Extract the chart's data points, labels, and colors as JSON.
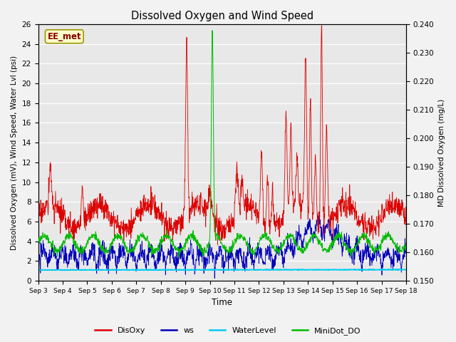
{
  "title": "Dissolved Oxygen and Wind Speed",
  "xlabel": "Time",
  "ylabel_left": "Dissolved Oxygen (mV), Wind Speed, Water Lvl (psi)",
  "ylabel_right": "MD Dissolved Oxygen (mg/L)",
  "ylim_left": [
    0,
    26
  ],
  "ylim_right": [
    0.15,
    0.24
  ],
  "yticks_left": [
    0,
    2,
    4,
    6,
    8,
    10,
    12,
    14,
    16,
    18,
    20,
    22,
    24,
    26
  ],
  "yticks_right": [
    0.15,
    0.16,
    0.17,
    0.18,
    0.19,
    0.2,
    0.21,
    0.22,
    0.23,
    0.24
  ],
  "xtick_labels": [
    "Sep 3",
    "Sep 4",
    "Sep 5",
    "Sep 6",
    "Sep 7",
    "Sep 8",
    "Sep 9",
    "Sep 10",
    "Sep 11",
    "Sep 12",
    "Sep 13",
    "Sep 14",
    "Sep 15",
    "Sep 16",
    "Sep 17",
    "Sep 18"
  ],
  "colors": {
    "DisOxy": "#dd0000",
    "ws": "#0000bb",
    "WaterLevel": "#00ccee",
    "MiniDot_DO": "#00bb00"
  },
  "label_box": "EE_met",
  "label_box_facecolor": "#ffffcc",
  "label_box_edgecolor": "#999900",
  "label_box_textcolor": "#880000",
  "background_color": "#e8e8e8",
  "grid_color": "#ffffff",
  "fig_facecolor": "#f2f2f2"
}
